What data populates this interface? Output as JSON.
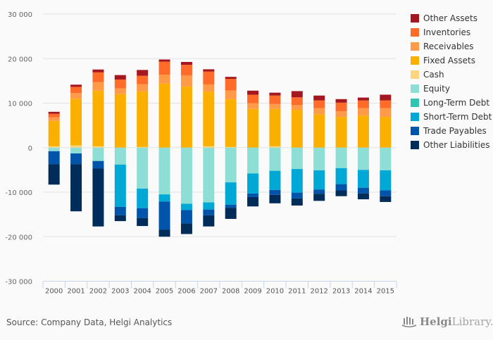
{
  "chart_data": {
    "type": "bar",
    "stacked": true,
    "title": "",
    "xlabel": "",
    "ylabel": "",
    "ylim": [
      -30000,
      30000
    ],
    "yticks": [
      30000,
      20000,
      10000,
      0,
      -10000,
      -20000,
      -30000
    ],
    "ytick_labels": [
      "30 000",
      "20 000",
      "10 000",
      "0",
      "-10 000",
      "-20 000",
      "-30 000"
    ],
    "grid": true,
    "legend_position": "right",
    "categories": [
      "2000",
      "2001",
      "2002",
      "2003",
      "2004",
      "2005",
      "2006",
      "2007",
      "2008",
      "2009",
      "2010",
      "2011",
      "2012",
      "2013",
      "2014",
      "2015"
    ],
    "series": [
      {
        "name": "Cash",
        "color": "#fdd47f",
        "values": [
          300,
          500,
          300,
          0,
          150,
          0,
          0,
          300,
          150,
          0,
          300,
          0,
          0,
          0,
          0,
          0
        ]
      },
      {
        "name": "Fixed Assets",
        "color": "#fbb000",
        "values": [
          5700,
          10500,
          12500,
          12000,
          12500,
          14400,
          13700,
          12300,
          10700,
          8700,
          8400,
          8500,
          7500,
          6900,
          7200,
          6900
        ]
      },
      {
        "name": "Receivables",
        "color": "#ff9a49",
        "values": [
          800,
          1250,
          1900,
          1300,
          1600,
          2000,
          2500,
          1600,
          2000,
          1300,
          1100,
          1100,
          1400,
          1300,
          1700,
          2000
        ]
      },
      {
        "name": "Inventories",
        "color": "#ff6b28",
        "values": [
          800,
          1400,
          2200,
          2000,
          1900,
          2900,
          2400,
          2900,
          2600,
          1900,
          1900,
          1700,
          1700,
          1900,
          1700,
          1700
        ]
      },
      {
        "name": "Other Assets",
        "color": "#a5171f",
        "values": [
          450,
          500,
          650,
          1000,
          1300,
          500,
          650,
          500,
          450,
          900,
          650,
          1400,
          1100,
          800,
          650,
          1300
        ]
      },
      {
        "name": "Equity",
        "color": "#8ddfd5",
        "values": [
          -800,
          -1300,
          -3000,
          -3800,
          -9200,
          -10500,
          -12600,
          -12300,
          -7800,
          -5800,
          -5200,
          -4800,
          -5100,
          -4600,
          -5000,
          -5100
        ]
      },
      {
        "name": "Long-Term Debt",
        "color": "#30c5b0",
        "values": [
          0,
          0,
          0,
          0,
          0,
          0,
          0,
          0,
          0,
          0,
          0,
          0,
          0,
          0,
          0,
          0
        ]
      },
      {
        "name": "Short-Term Debt",
        "color": "#00a8d6",
        "values": [
          0,
          0,
          0,
          -9500,
          -4400,
          -1600,
          -1400,
          -1600,
          -5000,
          -4500,
          -4300,
          -5300,
          -4300,
          -3600,
          -4000,
          -4500
        ]
      },
      {
        "name": "Trade Payables",
        "color": "#0055ab",
        "values": [
          -2900,
          -2400,
          -1700,
          -1900,
          -2200,
          -6300,
          -3000,
          -1300,
          -700,
          -800,
          -1100,
          -1300,
          -950,
          -1400,
          -1300,
          -1300
        ]
      },
      {
        "name": "Other Liabilities",
        "color": "#002c5a",
        "values": [
          -4600,
          -10600,
          -13000,
          -1300,
          -1800,
          -1600,
          -2400,
          -2500,
          -2500,
          -2100,
          -1900,
          -1600,
          -1600,
          -1300,
          -1300,
          -1300
        ]
      }
    ],
    "legend_order": [
      "Other Assets",
      "Inventories",
      "Receivables",
      "Fixed Assets",
      "Cash",
      "Equity",
      "Long-Term Debt",
      "Short-Term Debt",
      "Trade Payables",
      "Other Liabilities"
    ]
  },
  "footer": {
    "source": "Source: Company Data, Helgi Analytics",
    "logo_bold": "Helgi",
    "logo_light": "Library."
  }
}
